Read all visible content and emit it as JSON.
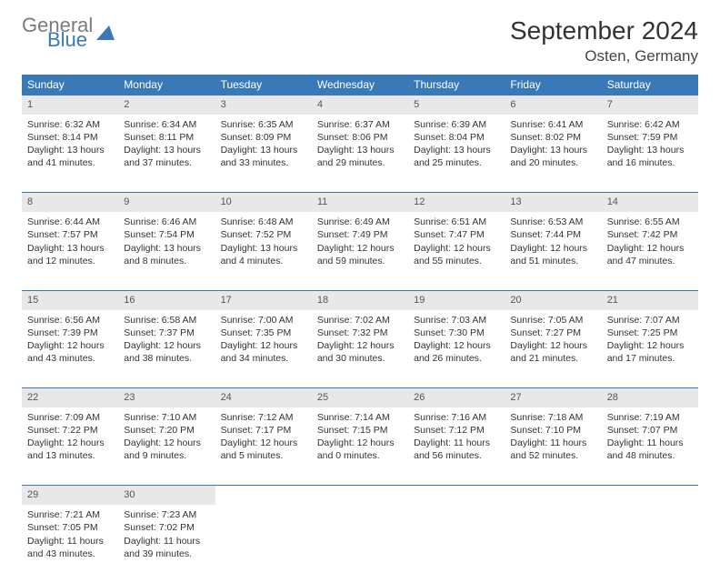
{
  "logo": {
    "general": "General",
    "blue": "Blue",
    "icon_color": "#3a79b7"
  },
  "title": "September 2024",
  "location": "Osten, Germany",
  "colors": {
    "header_bg": "#3a79b7",
    "daynum_bg": "#e8e8e8",
    "rule": "#3a79b7"
  },
  "weekdays": [
    "Sunday",
    "Monday",
    "Tuesday",
    "Wednesday",
    "Thursday",
    "Friday",
    "Saturday"
  ],
  "weeks": [
    [
      {
        "n": "1",
        "sr": "Sunrise: 6:32 AM",
        "ss": "Sunset: 8:14 PM",
        "dl": "Daylight: 13 hours and 41 minutes."
      },
      {
        "n": "2",
        "sr": "Sunrise: 6:34 AM",
        "ss": "Sunset: 8:11 PM",
        "dl": "Daylight: 13 hours and 37 minutes."
      },
      {
        "n": "3",
        "sr": "Sunrise: 6:35 AM",
        "ss": "Sunset: 8:09 PM",
        "dl": "Daylight: 13 hours and 33 minutes."
      },
      {
        "n": "4",
        "sr": "Sunrise: 6:37 AM",
        "ss": "Sunset: 8:06 PM",
        "dl": "Daylight: 13 hours and 29 minutes."
      },
      {
        "n": "5",
        "sr": "Sunrise: 6:39 AM",
        "ss": "Sunset: 8:04 PM",
        "dl": "Daylight: 13 hours and 25 minutes."
      },
      {
        "n": "6",
        "sr": "Sunrise: 6:41 AM",
        "ss": "Sunset: 8:02 PM",
        "dl": "Daylight: 13 hours and 20 minutes."
      },
      {
        "n": "7",
        "sr": "Sunrise: 6:42 AM",
        "ss": "Sunset: 7:59 PM",
        "dl": "Daylight: 13 hours and 16 minutes."
      }
    ],
    [
      {
        "n": "8",
        "sr": "Sunrise: 6:44 AM",
        "ss": "Sunset: 7:57 PM",
        "dl": "Daylight: 13 hours and 12 minutes."
      },
      {
        "n": "9",
        "sr": "Sunrise: 6:46 AM",
        "ss": "Sunset: 7:54 PM",
        "dl": "Daylight: 13 hours and 8 minutes."
      },
      {
        "n": "10",
        "sr": "Sunrise: 6:48 AM",
        "ss": "Sunset: 7:52 PM",
        "dl": "Daylight: 13 hours and 4 minutes."
      },
      {
        "n": "11",
        "sr": "Sunrise: 6:49 AM",
        "ss": "Sunset: 7:49 PM",
        "dl": "Daylight: 12 hours and 59 minutes."
      },
      {
        "n": "12",
        "sr": "Sunrise: 6:51 AM",
        "ss": "Sunset: 7:47 PM",
        "dl": "Daylight: 12 hours and 55 minutes."
      },
      {
        "n": "13",
        "sr": "Sunrise: 6:53 AM",
        "ss": "Sunset: 7:44 PM",
        "dl": "Daylight: 12 hours and 51 minutes."
      },
      {
        "n": "14",
        "sr": "Sunrise: 6:55 AM",
        "ss": "Sunset: 7:42 PM",
        "dl": "Daylight: 12 hours and 47 minutes."
      }
    ],
    [
      {
        "n": "15",
        "sr": "Sunrise: 6:56 AM",
        "ss": "Sunset: 7:39 PM",
        "dl": "Daylight: 12 hours and 43 minutes."
      },
      {
        "n": "16",
        "sr": "Sunrise: 6:58 AM",
        "ss": "Sunset: 7:37 PM",
        "dl": "Daylight: 12 hours and 38 minutes."
      },
      {
        "n": "17",
        "sr": "Sunrise: 7:00 AM",
        "ss": "Sunset: 7:35 PM",
        "dl": "Daylight: 12 hours and 34 minutes."
      },
      {
        "n": "18",
        "sr": "Sunrise: 7:02 AM",
        "ss": "Sunset: 7:32 PM",
        "dl": "Daylight: 12 hours and 30 minutes."
      },
      {
        "n": "19",
        "sr": "Sunrise: 7:03 AM",
        "ss": "Sunset: 7:30 PM",
        "dl": "Daylight: 12 hours and 26 minutes."
      },
      {
        "n": "20",
        "sr": "Sunrise: 7:05 AM",
        "ss": "Sunset: 7:27 PM",
        "dl": "Daylight: 12 hours and 21 minutes."
      },
      {
        "n": "21",
        "sr": "Sunrise: 7:07 AM",
        "ss": "Sunset: 7:25 PM",
        "dl": "Daylight: 12 hours and 17 minutes."
      }
    ],
    [
      {
        "n": "22",
        "sr": "Sunrise: 7:09 AM",
        "ss": "Sunset: 7:22 PM",
        "dl": "Daylight: 12 hours and 13 minutes."
      },
      {
        "n": "23",
        "sr": "Sunrise: 7:10 AM",
        "ss": "Sunset: 7:20 PM",
        "dl": "Daylight: 12 hours and 9 minutes."
      },
      {
        "n": "24",
        "sr": "Sunrise: 7:12 AM",
        "ss": "Sunset: 7:17 PM",
        "dl": "Daylight: 12 hours and 5 minutes."
      },
      {
        "n": "25",
        "sr": "Sunrise: 7:14 AM",
        "ss": "Sunset: 7:15 PM",
        "dl": "Daylight: 12 hours and 0 minutes."
      },
      {
        "n": "26",
        "sr": "Sunrise: 7:16 AM",
        "ss": "Sunset: 7:12 PM",
        "dl": "Daylight: 11 hours and 56 minutes."
      },
      {
        "n": "27",
        "sr": "Sunrise: 7:18 AM",
        "ss": "Sunset: 7:10 PM",
        "dl": "Daylight: 11 hours and 52 minutes."
      },
      {
        "n": "28",
        "sr": "Sunrise: 7:19 AM",
        "ss": "Sunset: 7:07 PM",
        "dl": "Daylight: 11 hours and 48 minutes."
      }
    ],
    [
      {
        "n": "29",
        "sr": "Sunrise: 7:21 AM",
        "ss": "Sunset: 7:05 PM",
        "dl": "Daylight: 11 hours and 43 minutes."
      },
      {
        "n": "30",
        "sr": "Sunrise: 7:23 AM",
        "ss": "Sunset: 7:02 PM",
        "dl": "Daylight: 11 hours and 39 minutes."
      },
      null,
      null,
      null,
      null,
      null
    ]
  ]
}
